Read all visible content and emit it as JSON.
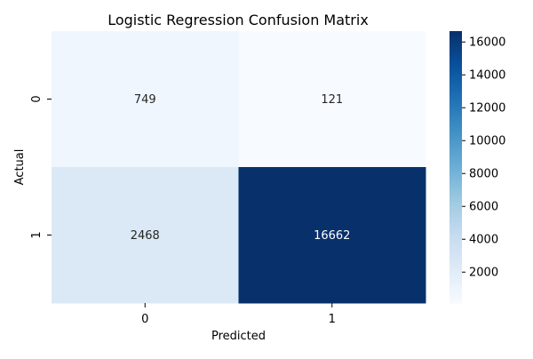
{
  "chart_data": {
    "type": "heatmap",
    "title": "Logistic Regression Confusion Matrix",
    "xlabel": "Predicted",
    "ylabel": "Actual",
    "x_categories": [
      "0",
      "1"
    ],
    "y_categories": [
      "0",
      "1"
    ],
    "values": [
      [
        749,
        121
      ],
      [
        2468,
        16662
      ]
    ],
    "colormap": "Blues",
    "colorbar": {
      "range": [
        121,
        16662
      ],
      "ticks": [
        2000,
        4000,
        6000,
        8000,
        10000,
        12000,
        14000,
        16000
      ]
    },
    "annotation_colors": {
      "light": "#262626",
      "dark": "#ffffff"
    }
  }
}
